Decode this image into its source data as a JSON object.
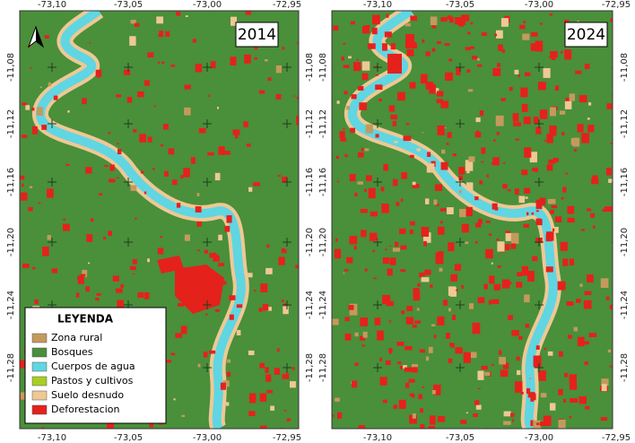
{
  "panels": [
    {
      "year": "2014",
      "x_labels": [
        "-73,10",
        "-73,05",
        "-73,00",
        "-72,95"
      ],
      "y_labels": [
        "-11,08",
        "-11,12",
        "-11,16",
        "-11,20",
        "-11,24",
        "-11,28"
      ]
    },
    {
      "year": "2024",
      "x_labels": [
        "-73,10",
        "-73,05",
        "-73,00",
        "-72,95"
      ],
      "y_labels": [
        "-11,08",
        "-11,12",
        "-11,16",
        "-11,20",
        "-11,24",
        "-11,28"
      ]
    }
  ],
  "legend": {
    "title": "LEYENDA",
    "items": [
      {
        "label": "Zona rural",
        "color": "#c49a5c"
      },
      {
        "label": "Bosques",
        "color": "#4a8f3a"
      },
      {
        "label": "Cuerpos de agua",
        "color": "#5fd6e2"
      },
      {
        "label": "Pastos y cultivos",
        "color": "#a6cf22"
      },
      {
        "label": "Suelo desnudo",
        "color": "#efc894"
      },
      {
        "label": "Deforestacion",
        "color": "#e5211c"
      }
    ]
  }
}
